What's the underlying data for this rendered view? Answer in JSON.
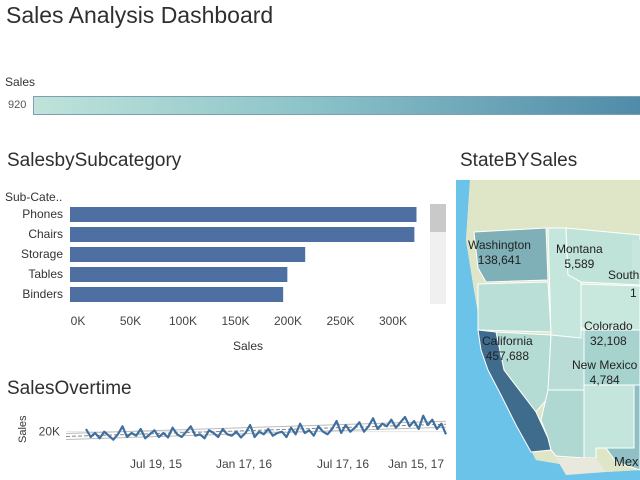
{
  "dashboard": {
    "title": "Sales Analysis Dashboard"
  },
  "legend": {
    "label": "Sales",
    "min_value": "920",
    "colors": [
      "#bfe3da",
      "#8cc3c9",
      "#4f8aa8"
    ]
  },
  "bar_section": {
    "title": "SalesbySubcategory"
  },
  "map_section": {
    "title": "StateBYSales",
    "states": [
      {
        "name": "Washington",
        "value": "138,641"
      },
      {
        "name": "Montana",
        "value": "5,589"
      },
      {
        "name": "South",
        "value": ""
      },
      {
        "name": "1",
        "value": ""
      },
      {
        "name": "Colorado",
        "value": "32,108"
      },
      {
        "name": "California",
        "value": "457,688"
      },
      {
        "name": "New Mexico",
        "value": "4,784"
      }
    ],
    "partial_label": "Mex"
  },
  "line_section": {
    "title": "SalesOvertime"
  },
  "chart_data": [
    {
      "type": "bar",
      "title": "SalesbySubcategory",
      "row_header": "Sub-Cate..",
      "categories": [
        "Phones",
        "Chairs",
        "Storage",
        "Tables",
        "Binders"
      ],
      "values": [
        330000,
        328000,
        224000,
        207000,
        203000
      ],
      "xlabel": "Sales",
      "xlim": [
        0,
        350000
      ],
      "xticks": [
        "0K",
        "50K",
        "100K",
        "150K",
        "200K",
        "250K",
        "300K"
      ],
      "color": "#4e6fa2",
      "grid": false
    },
    {
      "type": "line",
      "title": "SalesOvertime",
      "ylabel": "Sales",
      "yticks": [
        "20K"
      ],
      "xticks": [
        "Jul 19, 15",
        "Jan 17, 16",
        "Jul 17, 16",
        "Jan 15, 17"
      ],
      "values": [
        21000,
        18000,
        19500,
        17500,
        20000,
        18500,
        17000,
        19000,
        22000,
        18000,
        19500,
        18500,
        21000,
        17500,
        19000,
        20500,
        18000,
        19500,
        17800,
        21500,
        19000,
        18000,
        20000,
        22000,
        18500,
        19000,
        17500,
        20500,
        19500,
        18000,
        21000,
        19000,
        18500,
        20000,
        17800,
        19500,
        22500,
        18000,
        20000,
        19000,
        21000,
        18500,
        19500,
        20000,
        18000,
        21500,
        19000,
        23000,
        19500,
        20500,
        18500,
        22000,
        20000,
        19000,
        21000,
        24000,
        19500,
        22500,
        20000,
        21500,
        23500,
        20000,
        22000,
        25000,
        21000,
        23000,
        22000,
        24500,
        21500,
        23500,
        25500,
        22000,
        24000,
        21000,
        26000,
        22500,
        24500,
        21000,
        23000,
        19000
      ],
      "trend": [
        18200,
        22800
      ],
      "color": "#3f6fa0",
      "trend_color": "#888888"
    }
  ]
}
